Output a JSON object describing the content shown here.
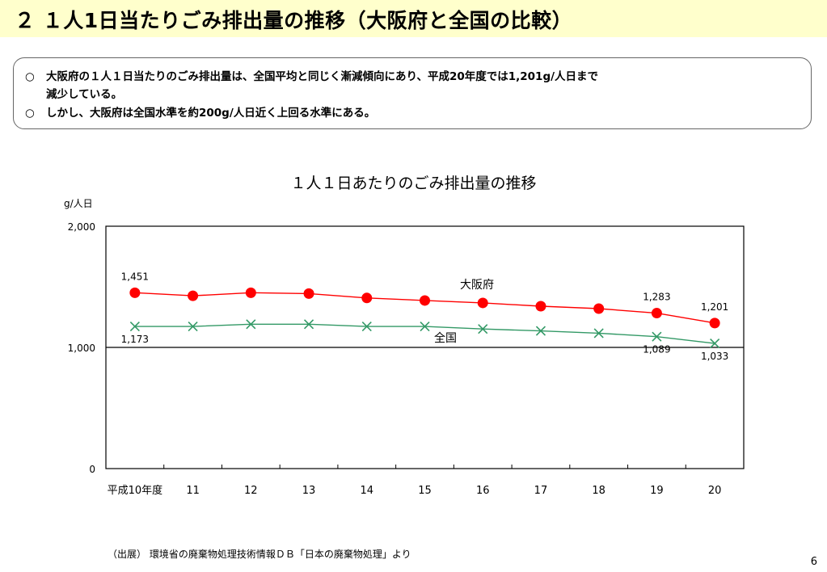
{
  "header": {
    "title": "２ １人1日当たりごみ排出量の推移（大阪府と全国の比較）"
  },
  "summary": {
    "bullet_mark": "○",
    "line1": "大阪府の１人１日当たりのごみ排出量は、全国平均と同じく漸減傾向にあり、平成20年度では1,201g/人日まで",
    "line1_cont": "減少している。",
    "line2": "しかし、大阪府は全国水準を約200g/人日近く上回る水準にある。"
  },
  "chart_data": {
    "type": "line",
    "title": "１人１日あたりのごみ排出量の推移",
    "ylabel": "g/人日",
    "ylim": [
      0,
      2000
    ],
    "yticks": [
      "0",
      "1,000",
      "2,000"
    ],
    "categories": [
      "平成10年度",
      "11",
      "12",
      "13",
      "14",
      "15",
      "16",
      "17",
      "18",
      "19",
      "20"
    ],
    "series": [
      {
        "name": "大阪府",
        "color": "#ff0000",
        "marker": "circle",
        "values": [
          1451,
          1426,
          1451,
          1444,
          1408,
          1387,
          1367,
          1340,
          1320,
          1283,
          1201
        ],
        "point_labels": {
          "0": "1,451",
          "9": "1,283",
          "10": "1,201"
        }
      },
      {
        "name": "全国",
        "color": "#339966",
        "marker": "x",
        "values": [
          1173,
          1173,
          1191,
          1191,
          1173,
          1173,
          1152,
          1136,
          1117,
          1089,
          1033
        ],
        "point_labels": {
          "0": "1,173",
          "9": "1,089",
          "10": "1,033"
        }
      }
    ],
    "grid": false,
    "reference_line": 1000
  },
  "footer": {
    "source": "（出展） 環境省の廃棄物処理技術情報ＤＢ「日本の廃棄物処理」より",
    "page_number": "6"
  }
}
